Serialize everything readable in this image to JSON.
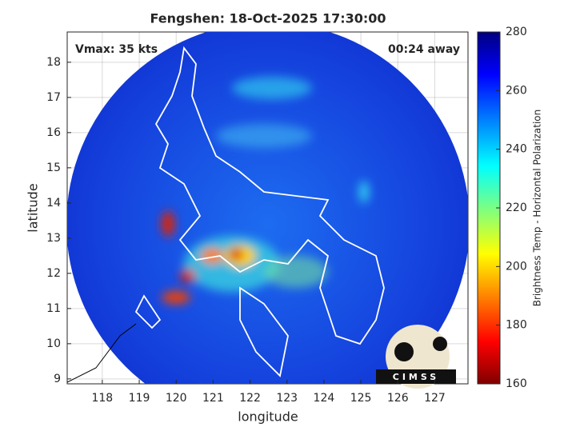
{
  "chart_data": {
    "type": "map",
    "title": "Fengshen: 18-Oct-2025 17:30:00",
    "annotations": [
      "Vmax: 35 kts",
      "00:24 away"
    ],
    "x_label": "longitude",
    "y_label": "latitude",
    "xlim": [
      117.05,
      127.9
    ],
    "xticks": [
      118,
      119,
      120,
      121,
      122,
      123,
      124,
      125,
      126,
      127
    ],
    "ylim": [
      8.86,
      18.86
    ],
    "yticks": [
      9,
      10,
      11,
      12,
      13,
      14,
      15,
      16,
      17,
      18
    ],
    "grid": true,
    "colorbar": {
      "label": "Brightness Temp - Horizontal Polarization",
      "lim": [
        160,
        280
      ],
      "ticks": [
        160,
        180,
        200,
        220,
        240,
        260,
        280
      ]
    },
    "logo": "CIMSS"
  }
}
